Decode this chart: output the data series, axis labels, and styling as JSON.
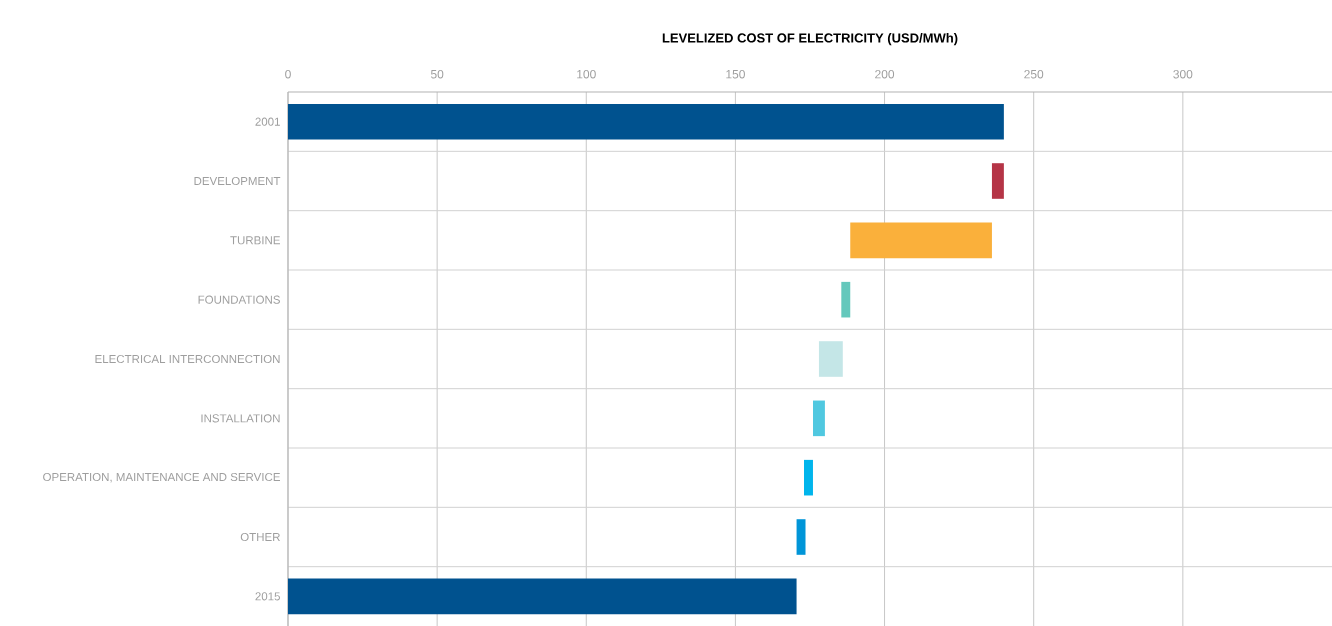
{
  "chart_data": {
    "type": "bar",
    "orientation": "horizontal",
    "xlabel": "LEVELIZED COST OF ELECTRICITY (USD/MWh)",
    "categories": [
      "2001",
      "DEVELOPMENT",
      "TURBINE",
      "FOUNDATIONS",
      "ELECTRICAL INTERCONNECTION",
      "INSTALLATION",
      "OPERATION, MAINTENANCE AND SERVICE",
      "OTHER",
      "2015"
    ],
    "values": [
      240,
      -4,
      -47.5,
      -3,
      -8,
      -4,
      -3,
      -3,
      170.5
    ],
    "base": [
      0,
      240,
      236,
      188.5,
      186,
      180,
      176,
      173.5,
      0
    ],
    "colors": [
      "#00528f",
      "#b53446",
      "#fab03b",
      "#64c8bc",
      "#c4e6e7",
      "#50c8e0",
      "#00b5ec",
      "#0095d8",
      "#00528f"
    ],
    "xlim": [
      0,
      350
    ],
    "xticks": [
      0,
      50,
      100,
      150,
      200,
      250,
      300
    ],
    "grid": true
  }
}
